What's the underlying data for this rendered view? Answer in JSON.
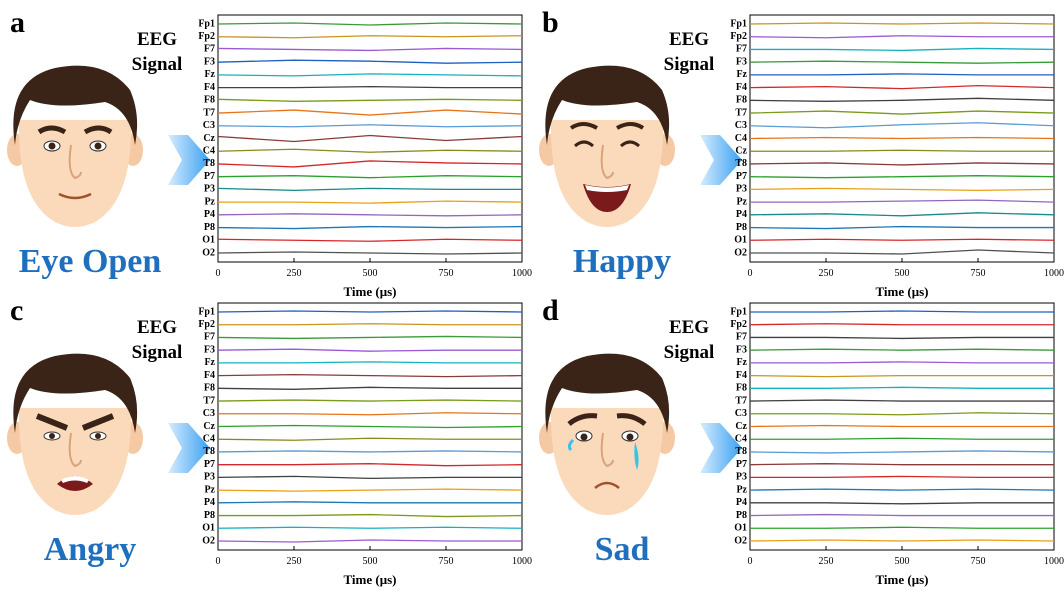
{
  "chart_data": [
    {
      "type": "line",
      "panel": "a",
      "annotation": [
        "EEG",
        "Signal"
      ],
      "label": "Eye Open",
      "xlabel": "Time (μs)",
      "xlim": [
        0,
        1000
      ],
      "xticks": [
        0,
        250,
        500,
        750,
        1000
      ],
      "x": [
        0,
        250,
        500,
        750,
        1000
      ],
      "series": [
        {
          "name": "Fp1",
          "color": "#3a9a3a",
          "values": [
            0,
            0.1,
            -0.1,
            0.1,
            0
          ]
        },
        {
          "name": "Fp2",
          "color": "#c8961e",
          "values": [
            0,
            -0.1,
            0.1,
            0,
            0.1
          ]
        },
        {
          "name": "F7",
          "color": "#9b59d6",
          "values": [
            0.1,
            0,
            -0.1,
            0.1,
            0
          ]
        },
        {
          "name": "F3",
          "color": "#1f5fbf",
          "values": [
            0,
            0.2,
            0.1,
            -0.1,
            0
          ]
        },
        {
          "name": "Fz",
          "color": "#17b0c0",
          "values": [
            0,
            -0.1,
            0.1,
            0,
            -0.1
          ]
        },
        {
          "name": "F4",
          "color": "#404040",
          "values": [
            0,
            0,
            0.1,
            0,
            0
          ]
        },
        {
          "name": "F8",
          "color": "#7a9a1a",
          "values": [
            0.1,
            -0.1,
            0,
            0.1,
            0
          ]
        },
        {
          "name": "T7",
          "color": "#e8741a",
          "values": [
            0,
            0.3,
            -0.2,
            0.3,
            -0.1
          ]
        },
        {
          "name": "C3",
          "color": "#5b9bd5",
          "values": [
            0,
            -0.1,
            0.1,
            -0.1,
            0
          ]
        },
        {
          "name": "Cz",
          "color": "#8b3a3a",
          "values": [
            0.2,
            -0.3,
            0.3,
            -0.2,
            0.2
          ]
        },
        {
          "name": "C4",
          "color": "#8a8a1a",
          "values": [
            0,
            0.2,
            -0.1,
            0.1,
            0
          ]
        },
        {
          "name": "T8",
          "color": "#d62728",
          "values": [
            0,
            -0.3,
            0.3,
            0.1,
            0
          ]
        },
        {
          "name": "P7",
          "color": "#2ca02c",
          "values": [
            0,
            0.1,
            -0.1,
            0.1,
            0
          ]
        },
        {
          "name": "P3",
          "color": "#178a8a",
          "values": [
            0.1,
            -0.1,
            0.1,
            0,
            0
          ]
        },
        {
          "name": "Pz",
          "color": "#e8a01a",
          "values": [
            0,
            0,
            -0.1,
            0.1,
            0
          ]
        },
        {
          "name": "P4",
          "color": "#9467bd",
          "values": [
            0,
            0.1,
            0,
            -0.1,
            0
          ]
        },
        {
          "name": "P8",
          "color": "#1f77b4",
          "values": [
            0,
            -0.1,
            0.1,
            0,
            0.1
          ]
        },
        {
          "name": "O1",
          "color": "#d62728",
          "values": [
            0.1,
            0,
            -0.1,
            0.1,
            0
          ]
        },
        {
          "name": "O2",
          "color": "#505050",
          "values": [
            0,
            0.1,
            0,
            -0.1,
            0
          ]
        }
      ]
    },
    {
      "type": "line",
      "panel": "b",
      "annotation": [
        "EEG",
        "Signal"
      ],
      "label": "Happy",
      "xlabel": "Time (μs)",
      "xlim": [
        0,
        1000
      ],
      "xticks": [
        0,
        250,
        500,
        750,
        1000
      ],
      "x": [
        0,
        250,
        500,
        750,
        1000
      ],
      "series": [
        {
          "name": "Fp1",
          "color": "#c8961e",
          "values": [
            0,
            0.1,
            0,
            0.1,
            0
          ]
        },
        {
          "name": "Fp2",
          "color": "#9b59d6",
          "values": [
            0,
            -0.1,
            0.1,
            0,
            0
          ]
        },
        {
          "name": "F7",
          "color": "#17b0c0",
          "values": [
            0,
            0,
            -0.1,
            0.1,
            0
          ]
        },
        {
          "name": "F3",
          "color": "#3a9a3a",
          "values": [
            0,
            0.1,
            0,
            -0.1,
            0
          ]
        },
        {
          "name": "Fz",
          "color": "#1f5fbf",
          "values": [
            0,
            0,
            0.1,
            0,
            0
          ]
        },
        {
          "name": "F4",
          "color": "#d62728",
          "values": [
            0,
            0.1,
            -0.1,
            0.2,
            0
          ]
        },
        {
          "name": "F8",
          "color": "#404040",
          "values": [
            0,
            -0.1,
            0,
            0.2,
            0
          ]
        },
        {
          "name": "T7",
          "color": "#7a9a1a",
          "values": [
            0,
            0.2,
            -0.1,
            0.2,
            0
          ]
        },
        {
          "name": "C3",
          "color": "#5b9bd5",
          "values": [
            0,
            -0.2,
            0.1,
            0.3,
            0
          ]
        },
        {
          "name": "C4",
          "color": "#e8741a",
          "values": [
            0,
            0.1,
            0,
            0.1,
            0
          ]
        },
        {
          "name": "Cz",
          "color": "#8a8a1a",
          "values": [
            0,
            0,
            0.1,
            0,
            0
          ]
        },
        {
          "name": "T8",
          "color": "#8b3a3a",
          "values": [
            0,
            0.1,
            -0.1,
            0.1,
            0
          ]
        },
        {
          "name": "P7",
          "color": "#2ca02c",
          "values": [
            0,
            -0.1,
            0,
            0.1,
            0
          ]
        },
        {
          "name": "P3",
          "color": "#e8a01a",
          "values": [
            0,
            0.1,
            0,
            -0.1,
            0
          ]
        },
        {
          "name": "Pz",
          "color": "#9467bd",
          "values": [
            0,
            0,
            0.1,
            0.2,
            0
          ]
        },
        {
          "name": "P4",
          "color": "#178a8a",
          "values": [
            0,
            0.1,
            -0.1,
            0.2,
            0
          ]
        },
        {
          "name": "P8",
          "color": "#1f77b4",
          "values": [
            0,
            -0.1,
            0.1,
            0,
            0
          ]
        },
        {
          "name": "O1",
          "color": "#d62728",
          "values": [
            0,
            0.1,
            0,
            0.1,
            0
          ]
        },
        {
          "name": "O2",
          "color": "#505050",
          "values": [
            0,
            0,
            -0.1,
            0.3,
            0
          ]
        }
      ]
    },
    {
      "type": "line",
      "panel": "c",
      "annotation": [
        "EEG",
        "Signal"
      ],
      "label": "Angry",
      "xlabel": "Time (μs)",
      "xlim": [
        0,
        1000
      ],
      "xticks": [
        0,
        250,
        500,
        750,
        1000
      ],
      "x": [
        0,
        250,
        500,
        750,
        1000
      ],
      "series": [
        {
          "name": "Fp1",
          "color": "#1f5fbf",
          "values": [
            0,
            0.1,
            0,
            0.1,
            0
          ]
        },
        {
          "name": "Fp2",
          "color": "#c8961e",
          "values": [
            0,
            0,
            0.1,
            0,
            0
          ]
        },
        {
          "name": "F7",
          "color": "#3a9a3a",
          "values": [
            0,
            -0.1,
            0,
            0.1,
            0
          ]
        },
        {
          "name": "F3",
          "color": "#9b59d6",
          "values": [
            0,
            0.1,
            -0.1,
            0,
            0
          ]
        },
        {
          "name": "Fz",
          "color": "#17b0c0",
          "values": [
            0,
            0,
            0.1,
            0,
            0
          ]
        },
        {
          "name": "F4",
          "color": "#8b3a3a",
          "values": [
            0,
            0.1,
            0,
            -0.1,
            0
          ]
        },
        {
          "name": "F8",
          "color": "#404040",
          "values": [
            0,
            -0.1,
            0.1,
            0,
            0
          ]
        },
        {
          "name": "T7",
          "color": "#7a9a1a",
          "values": [
            0,
            0.1,
            0,
            0.1,
            0
          ]
        },
        {
          "name": "C3",
          "color": "#e8741a",
          "values": [
            0,
            0,
            -0.1,
            0.1,
            0
          ]
        },
        {
          "name": "Cz",
          "color": "#2ca02c",
          "values": [
            0,
            0.1,
            0,
            -0.1,
            0
          ]
        },
        {
          "name": "C4",
          "color": "#8a8a1a",
          "values": [
            0,
            -0.1,
            0.1,
            0,
            0
          ]
        },
        {
          "name": "T8",
          "color": "#5b9bd5",
          "values": [
            0,
            0.1,
            0,
            0.1,
            0
          ]
        },
        {
          "name": "P7",
          "color": "#d62728",
          "values": [
            0,
            0,
            0.1,
            -0.1,
            0
          ]
        },
        {
          "name": "P3",
          "color": "#404040",
          "values": [
            0,
            0.1,
            -0.1,
            0,
            0
          ]
        },
        {
          "name": "Pz",
          "color": "#e8a01a",
          "values": [
            0,
            -0.1,
            0,
            0.1,
            0
          ]
        },
        {
          "name": "P4",
          "color": "#1f77b4",
          "values": [
            0,
            0.1,
            0,
            0,
            0
          ]
        },
        {
          "name": "P8",
          "color": "#7a9a1a",
          "values": [
            0,
            0,
            0.1,
            -0.1,
            0
          ]
        },
        {
          "name": "O1",
          "color": "#17b0c0",
          "values": [
            0,
            0.1,
            0,
            0.1,
            0
          ]
        },
        {
          "name": "O2",
          "color": "#9b59d6",
          "values": [
            0,
            -0.1,
            0.1,
            0,
            0
          ]
        }
      ]
    },
    {
      "type": "line",
      "panel": "d",
      "annotation": [
        "EEG",
        "Signal"
      ],
      "label": "Sad",
      "xlabel": "Time (μs)",
      "xlim": [
        0,
        1000
      ],
      "xticks": [
        0,
        250,
        500,
        750,
        1000
      ],
      "x": [
        0,
        250,
        500,
        750,
        1000
      ],
      "series": [
        {
          "name": "Fp1",
          "color": "#1f5fbf",
          "values": [
            0,
            0,
            0.1,
            0,
            0
          ]
        },
        {
          "name": "Fp2",
          "color": "#d62728",
          "values": [
            0,
            0.1,
            0,
            0,
            0
          ]
        },
        {
          "name": "F7",
          "color": "#404040",
          "values": [
            0,
            0,
            -0.1,
            0,
            0
          ]
        },
        {
          "name": "F3",
          "color": "#3a9a3a",
          "values": [
            0,
            0.1,
            0,
            0.1,
            0
          ]
        },
        {
          "name": "Fz",
          "color": "#9b59d6",
          "values": [
            0,
            0,
            0.1,
            0,
            0
          ]
        },
        {
          "name": "F4",
          "color": "#c8961e",
          "values": [
            0,
            -0.1,
            0,
            0,
            0
          ]
        },
        {
          "name": "F8",
          "color": "#17b0c0",
          "values": [
            0,
            0,
            0.1,
            0,
            0
          ]
        },
        {
          "name": "T7",
          "color": "#404040",
          "values": [
            0,
            0.1,
            0,
            0,
            0
          ]
        },
        {
          "name": "C3",
          "color": "#7a9a1a",
          "values": [
            0,
            0,
            -0.1,
            0.1,
            0
          ]
        },
        {
          "name": "Cz",
          "color": "#e8741a",
          "values": [
            0,
            0.1,
            0,
            0,
            0
          ]
        },
        {
          "name": "C4",
          "color": "#2ca02c",
          "values": [
            0,
            0,
            0.1,
            0,
            0
          ]
        },
        {
          "name": "T8",
          "color": "#5b9bd5",
          "values": [
            0,
            -0.1,
            0,
            0.1,
            0
          ]
        },
        {
          "name": "P7",
          "color": "#8b3a3a",
          "values": [
            0,
            0.1,
            0,
            0,
            0
          ]
        },
        {
          "name": "P3",
          "color": "#d62728",
          "values": [
            0,
            0,
            0.1,
            0,
            0
          ]
        },
        {
          "name": "Pz",
          "color": "#1f77b4",
          "values": [
            0,
            0.1,
            0,
            0.1,
            0
          ]
        },
        {
          "name": "P4",
          "color": "#404040",
          "values": [
            0,
            0,
            -0.1,
            0,
            0
          ]
        },
        {
          "name": "P8",
          "color": "#9467bd",
          "values": [
            0,
            0.1,
            0,
            0,
            0
          ]
        },
        {
          "name": "O1",
          "color": "#2ca02c",
          "values": [
            0,
            0,
            0.1,
            0,
            0
          ]
        },
        {
          "name": "O2",
          "color": "#e8a01a",
          "values": [
            0,
            0.1,
            0,
            0.1,
            0
          ]
        }
      ]
    }
  ]
}
